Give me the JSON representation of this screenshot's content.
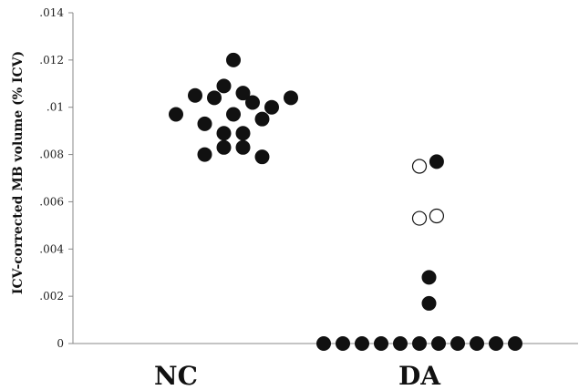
{
  "chart_data": {
    "type": "scatter",
    "title": "",
    "xlabel": "",
    "ylabel": "ICV-corrected MB volume (% ICV)",
    "ylim": [
      0,
      0.014
    ],
    "yticks": [
      0,
      0.002,
      0.004,
      0.006,
      0.008,
      0.01,
      0.012,
      0.014
    ],
    "ytick_labels": [
      "0",
      ".002",
      ".004",
      ".006",
      ".008",
      ".01",
      ".012",
      ".014"
    ],
    "grid": false,
    "categories": [
      "NC",
      "DA"
    ],
    "colors": {
      "filled": "#111111",
      "open_stroke": "#111111",
      "open_fill": "#ffffff"
    },
    "series": [
      {
        "category": "NC",
        "points": [
          {
            "x": 0.0,
            "y": 0.0097,
            "filled": true
          },
          {
            "x": 1.0,
            "y": 0.0105,
            "filled": true
          },
          {
            "x": 1.5,
            "y": 0.0093,
            "filled": true
          },
          {
            "x": 1.5,
            "y": 0.008,
            "filled": true
          },
          {
            "x": 2.0,
            "y": 0.0104,
            "filled": true
          },
          {
            "x": 2.5,
            "y": 0.0109,
            "filled": true
          },
          {
            "x": 2.5,
            "y": 0.0089,
            "filled": true
          },
          {
            "x": 2.5,
            "y": 0.0083,
            "filled": true
          },
          {
            "x": 3.0,
            "y": 0.012,
            "filled": true
          },
          {
            "x": 3.0,
            "y": 0.0097,
            "filled": true
          },
          {
            "x": 3.5,
            "y": 0.0106,
            "filled": true
          },
          {
            "x": 3.5,
            "y": 0.0089,
            "filled": true
          },
          {
            "x": 3.5,
            "y": 0.0083,
            "filled": true
          },
          {
            "x": 4.0,
            "y": 0.0102,
            "filled": true
          },
          {
            "x": 4.5,
            "y": 0.0095,
            "filled": true
          },
          {
            "x": 4.5,
            "y": 0.0079,
            "filled": true
          },
          {
            "x": 5.0,
            "y": 0.01,
            "filled": true
          },
          {
            "x": 6.0,
            "y": 0.0104,
            "filled": true
          }
        ]
      },
      {
        "category": "DA",
        "points": [
          {
            "x": -5.0,
            "y": 0,
            "filled": true
          },
          {
            "x": -4.0,
            "y": 0,
            "filled": true
          },
          {
            "x": -3.0,
            "y": 0,
            "filled": true
          },
          {
            "x": -2.0,
            "y": 0,
            "filled": true
          },
          {
            "x": -1.0,
            "y": 0,
            "filled": true
          },
          {
            "x": 0.0,
            "y": 0,
            "filled": true
          },
          {
            "x": 1.0,
            "y": 0,
            "filled": true
          },
          {
            "x": 2.0,
            "y": 0,
            "filled": true
          },
          {
            "x": 3.0,
            "y": 0,
            "filled": true
          },
          {
            "x": 4.0,
            "y": 0,
            "filled": true
          },
          {
            "x": 5.0,
            "y": 0,
            "filled": true
          },
          {
            "x": 0.5,
            "y": 0.0017,
            "filled": true
          },
          {
            "x": 0.5,
            "y": 0.0028,
            "filled": true
          },
          {
            "x": 0.0,
            "y": 0.0053,
            "filled": false
          },
          {
            "x": 0.9,
            "y": 0.0054,
            "filled": false
          },
          {
            "x": 0.0,
            "y": 0.0075,
            "filled": false
          },
          {
            "x": 0.9,
            "y": 0.0077,
            "filled": true
          }
        ]
      }
    ]
  }
}
